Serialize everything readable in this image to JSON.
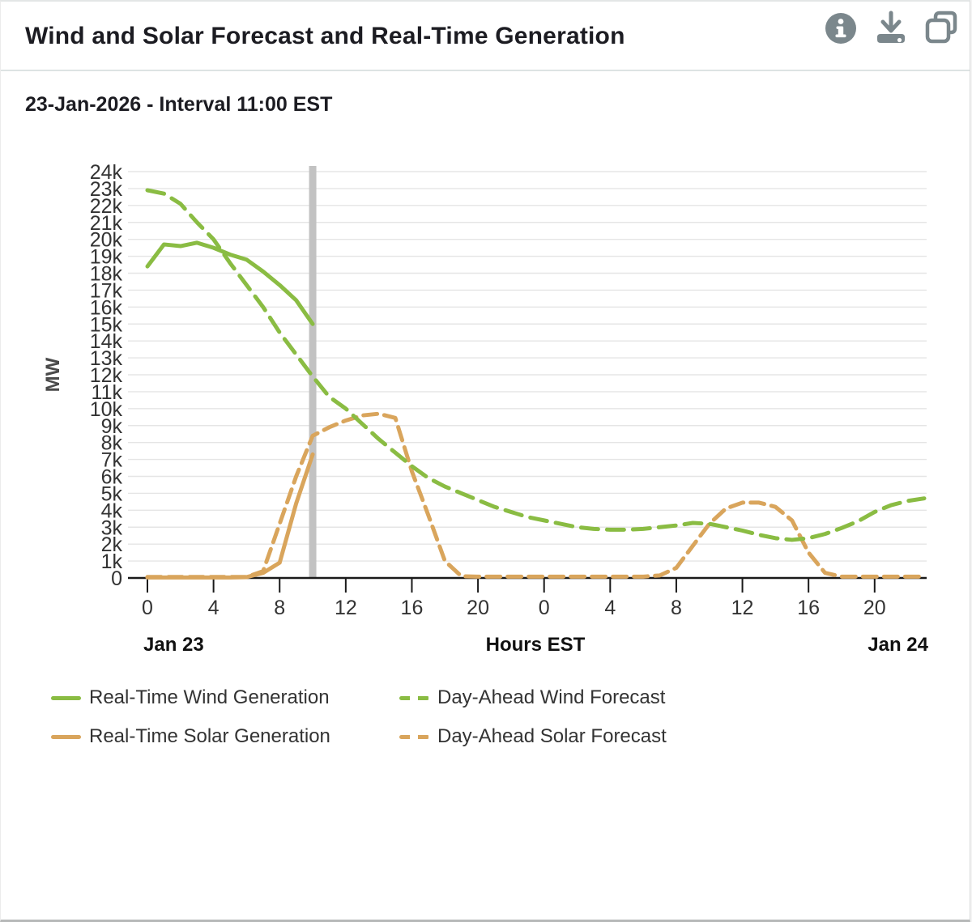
{
  "header": {
    "title": "Wind and Solar Forecast and Real-Time Generation",
    "icons": [
      {
        "name": "info-icon"
      },
      {
        "name": "download-icon"
      },
      {
        "name": "copy-icon"
      }
    ]
  },
  "subtitle": "23-Jan-2026 - Interval 11:00 EST",
  "chart_data": {
    "type": "line",
    "title": "Wind and Solar Forecast and Real-Time Generation",
    "ylabel": "MW",
    "xlabel": "Hours EST",
    "ylim": [
      0,
      24000
    ],
    "y_tick_step": 1000,
    "y_tick_labels": [
      "0",
      "1k",
      "2k",
      "3k",
      "4k",
      "5k",
      "6k",
      "7k",
      "8k",
      "9k",
      "10k",
      "11k",
      "12k",
      "13k",
      "14k",
      "15k",
      "16k",
      "17k",
      "18k",
      "19k",
      "20k",
      "21k",
      "22k",
      "23k",
      "24k"
    ],
    "x_tick_hours": [
      0,
      4,
      8,
      12,
      16,
      20,
      24,
      28,
      32,
      36,
      40,
      44
    ],
    "x_tick_labels": [
      "0",
      "4",
      "8",
      "12",
      "16",
      "20",
      "0",
      "4",
      "8",
      "12",
      "16",
      "20"
    ],
    "day_labels": {
      "left": "Jan 23",
      "center": "Hours EST",
      "right": "Jan 24"
    },
    "current_interval_marker_hour": 10,
    "grid": true,
    "legend_position": "bottom",
    "series": [
      {
        "name": "Day-Ahead Solar Forecast",
        "style": "dashed",
        "color": "#d9a55c",
        "x_start": 0,
        "values_mw": [
          60,
          60,
          60,
          60,
          60,
          60,
          60,
          400,
          3200,
          6000,
          8400,
          8900,
          9300,
          9600,
          9700,
          9450,
          6300,
          3700,
          1000,
          100,
          80,
          80,
          80,
          80,
          80,
          80,
          80,
          80,
          80,
          80,
          80,
          150,
          600,
          1900,
          3200,
          4100,
          4450,
          4450,
          4200,
          3400,
          1500,
          300,
          80,
          80,
          80,
          80,
          80,
          80
        ]
      },
      {
        "name": "Day-Ahead Wind Forecast",
        "style": "dashed",
        "color": "#8abc43",
        "x_start": 0,
        "values_mw": [
          22900,
          22700,
          22100,
          21000,
          20000,
          18600,
          17300,
          16000,
          14500,
          13200,
          11900,
          10700,
          10000,
          9100,
          8200,
          7400,
          6600,
          5900,
          5400,
          5000,
          4600,
          4200,
          3900,
          3600,
          3400,
          3200,
          3000,
          2900,
          2850,
          2850,
          2900,
          3000,
          3100,
          3250,
          3200,
          3000,
          2800,
          2550,
          2350,
          2250,
          2350,
          2600,
          2950,
          3350,
          3900,
          4300,
          4550,
          4700
        ]
      },
      {
        "name": "Real-Time Solar Generation",
        "style": "solid",
        "color": "#d9a55c",
        "x_start": 0,
        "values_mw": [
          30,
          30,
          30,
          30,
          30,
          30,
          50,
          300,
          900,
          4400,
          7300
        ]
      },
      {
        "name": "Real-Time Wind Generation",
        "style": "solid",
        "color": "#8abc43",
        "x_start": 0,
        "values_mw": [
          18400,
          19700,
          19600,
          19800,
          19500,
          19100,
          18800,
          18100,
          17300,
          16400,
          15000
        ]
      }
    ]
  },
  "legend": {
    "items": [
      {
        "label": "Real-Time Wind Generation",
        "style": "solid",
        "color": "#8abc43"
      },
      {
        "label": "Day-Ahead Wind Forecast",
        "style": "dashed",
        "color": "#8abc43"
      },
      {
        "label": "Real-Time Solar Generation",
        "style": "solid",
        "color": "#d9a55c"
      },
      {
        "label": "Day-Ahead Solar Forecast",
        "style": "dashed",
        "color": "#d9a55c"
      }
    ]
  },
  "colors": {
    "wind": "#8abc43",
    "solar": "#d9a55c",
    "interval_marker": "#c2c2c2",
    "gridline": "#e5e5e5",
    "axis": "#1a1a1a",
    "tick_text": "#333333",
    "title_text": "#1c1c22",
    "icon": "#7b878c"
  }
}
